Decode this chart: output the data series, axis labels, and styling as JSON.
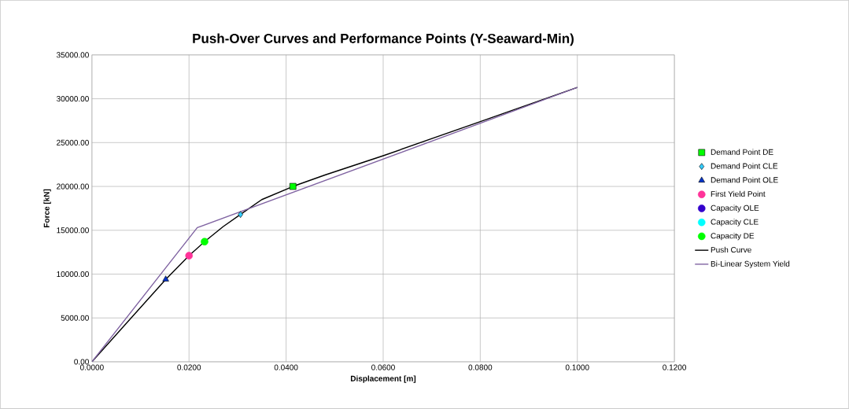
{
  "chart_data": {
    "type": "scatter",
    "title": "Push-Over Curves and Performance Points (Y-Seaward-Min)",
    "xlabel": "Displacement [m]",
    "ylabel": "Force [kN]",
    "xlim": [
      0,
      0.12
    ],
    "ylim": [
      0,
      35000
    ],
    "xticks": [
      {
        "value": 0,
        "label": "0.0000"
      },
      {
        "value": 0.02,
        "label": "0.0200"
      },
      {
        "value": 0.04,
        "label": "0.0400"
      },
      {
        "value": 0.06,
        "label": "0.0600"
      },
      {
        "value": 0.08,
        "label": "0.0800"
      },
      {
        "value": 0.1,
        "label": "0.1000"
      },
      {
        "value": 0.12,
        "label": "0.1200"
      }
    ],
    "yticks": [
      {
        "value": 0,
        "label": "0.00"
      },
      {
        "value": 5000,
        "label": "5000.00"
      },
      {
        "value": 10000,
        "label": "10000.00"
      },
      {
        "value": 15000,
        "label": "15000.00"
      },
      {
        "value": 20000,
        "label": "20000.00"
      },
      {
        "value": 25000,
        "label": "25000.00"
      },
      {
        "value": 30000,
        "label": "30000.00"
      },
      {
        "value": 35000,
        "label": "35000.00"
      }
    ],
    "grid": true,
    "legend": "right",
    "series": [
      {
        "name": "Demand Point DE",
        "marker": "square",
        "color": "#00ff00",
        "x": [
          0.0414
        ],
        "values": [
          20000
        ]
      },
      {
        "name": "Demand Point CLE",
        "marker": "diamond",
        "color": "#33ccff",
        "x": [
          0.0306
        ],
        "values": [
          16800
        ]
      },
      {
        "name": "Demand Point OLE",
        "marker": "triangle",
        "color": "#0033cc",
        "x": [
          0.0152
        ],
        "values": [
          9400
        ]
      },
      {
        "name": "First Yield Point",
        "marker": "circle",
        "color": "#ff3399",
        "x": [
          0.02
        ],
        "values": [
          12100
        ]
      },
      {
        "name": "Capacity OLE",
        "marker": "circle",
        "color": "#3300cc",
        "x": [
          null
        ],
        "values": [
          null
        ]
      },
      {
        "name": "Capacity CLE",
        "marker": "circle",
        "color": "#00ffff",
        "x": [
          null
        ],
        "values": [
          null
        ]
      },
      {
        "name": "Capacity DE",
        "marker": "circle",
        "color": "#00ff00",
        "x": [
          0.0232
        ],
        "values": [
          13700
        ]
      },
      {
        "name": "Push Curve",
        "type": "line",
        "marker": "none",
        "color": "#000000",
        "x": [
          0,
          0.0076,
          0.0152,
          0.02,
          0.0232,
          0.027,
          0.0306,
          0.035,
          0.0414,
          0.048,
          0.06,
          0.08,
          0.1
        ],
        "values": [
          0,
          4700,
          9400,
          12100,
          13700,
          15400,
          16800,
          18500,
          20000,
          21300,
          23500,
          27400,
          31300
        ]
      },
      {
        "name": "Bi-Linear System Yield",
        "type": "line",
        "marker": "none",
        "color": "#8064a2",
        "x": [
          0,
          0.0217,
          0.1
        ],
        "values": [
          0,
          15300,
          31300
        ]
      }
    ]
  }
}
